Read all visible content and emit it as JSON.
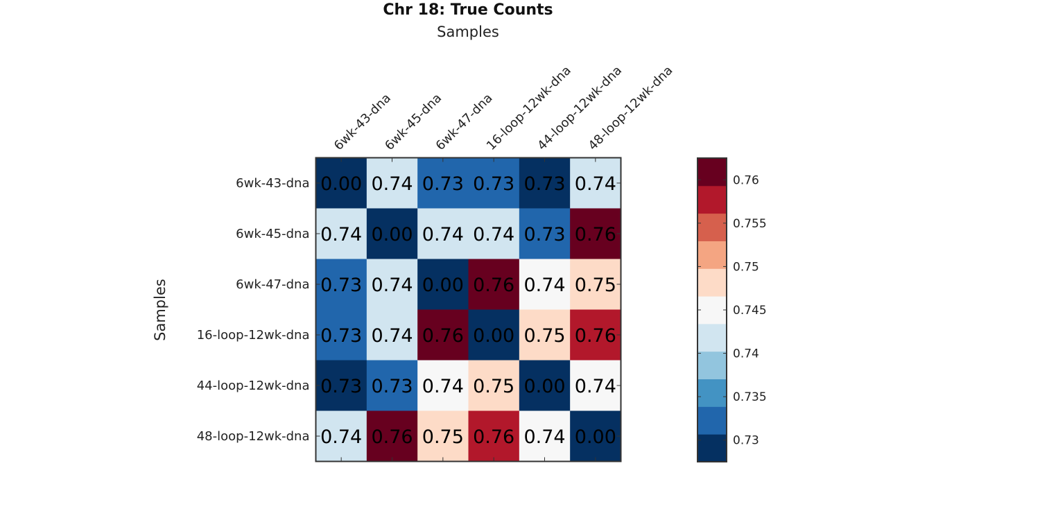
{
  "chart_data": {
    "type": "heatmap",
    "title": "Chr 18: True Counts",
    "xlabel": "Samples",
    "ylabel": "Samples",
    "x_categories": [
      "6wk-43-dna",
      "6wk-45-dna",
      "6wk-47-dna",
      "16-loop-12wk-dna",
      "44-loop-12wk-dna",
      "48-loop-12wk-dna"
    ],
    "y_categories": [
      "6wk-43-dna",
      "6wk-45-dna",
      "6wk-47-dna",
      "16-loop-12wk-dna",
      "44-loop-12wk-dna",
      "48-loop-12wk-dna"
    ],
    "values": [
      [
        0.0,
        0.741,
        0.733,
        0.733,
        0.729,
        0.741
      ],
      [
        0.741,
        0.0,
        0.741,
        0.741,
        0.733,
        0.761
      ],
      [
        0.733,
        0.741,
        0.0,
        0.761,
        0.744,
        0.748
      ],
      [
        0.733,
        0.741,
        0.761,
        0.0,
        0.748,
        0.757
      ],
      [
        0.729,
        0.733,
        0.744,
        0.748,
        0.0,
        0.744
      ],
      [
        0.741,
        0.761,
        0.748,
        0.757,
        0.744,
        0.0
      ]
    ],
    "labels": [
      [
        "0.00",
        "0.74",
        "0.73",
        "0.73",
        "0.73",
        "0.74"
      ],
      [
        "0.74",
        "0.00",
        "0.74",
        "0.74",
        "0.73",
        "0.76"
      ],
      [
        "0.73",
        "0.74",
        "0.00",
        "0.76",
        "0.74",
        "0.75"
      ],
      [
        "0.73",
        "0.74",
        "0.76",
        "0.00",
        "0.75",
        "0.76"
      ],
      [
        "0.73",
        "0.73",
        "0.74",
        "0.75",
        "0.00",
        "0.74"
      ],
      [
        "0.74",
        "0.76",
        "0.75",
        "0.76",
        "0.74",
        "0.00"
      ]
    ],
    "colorbar": {
      "range": [
        0.7275,
        0.7625
      ],
      "ticks": [
        0.73,
        0.735,
        0.74,
        0.745,
        0.75,
        0.755,
        0.76
      ],
      "tick_labels": [
        "0.73",
        "0.735",
        "0.74",
        "0.745",
        "0.75",
        "0.755",
        "0.76"
      ],
      "colors": [
        "#053061",
        "#2166ac",
        "#4393c3",
        "#92c5de",
        "#d1e5f0",
        "#f7f7f7",
        "#fddbc7",
        "#f4a582",
        "#d6604d",
        "#b2182b",
        "#67001f"
      ],
      "location": "right"
    }
  }
}
